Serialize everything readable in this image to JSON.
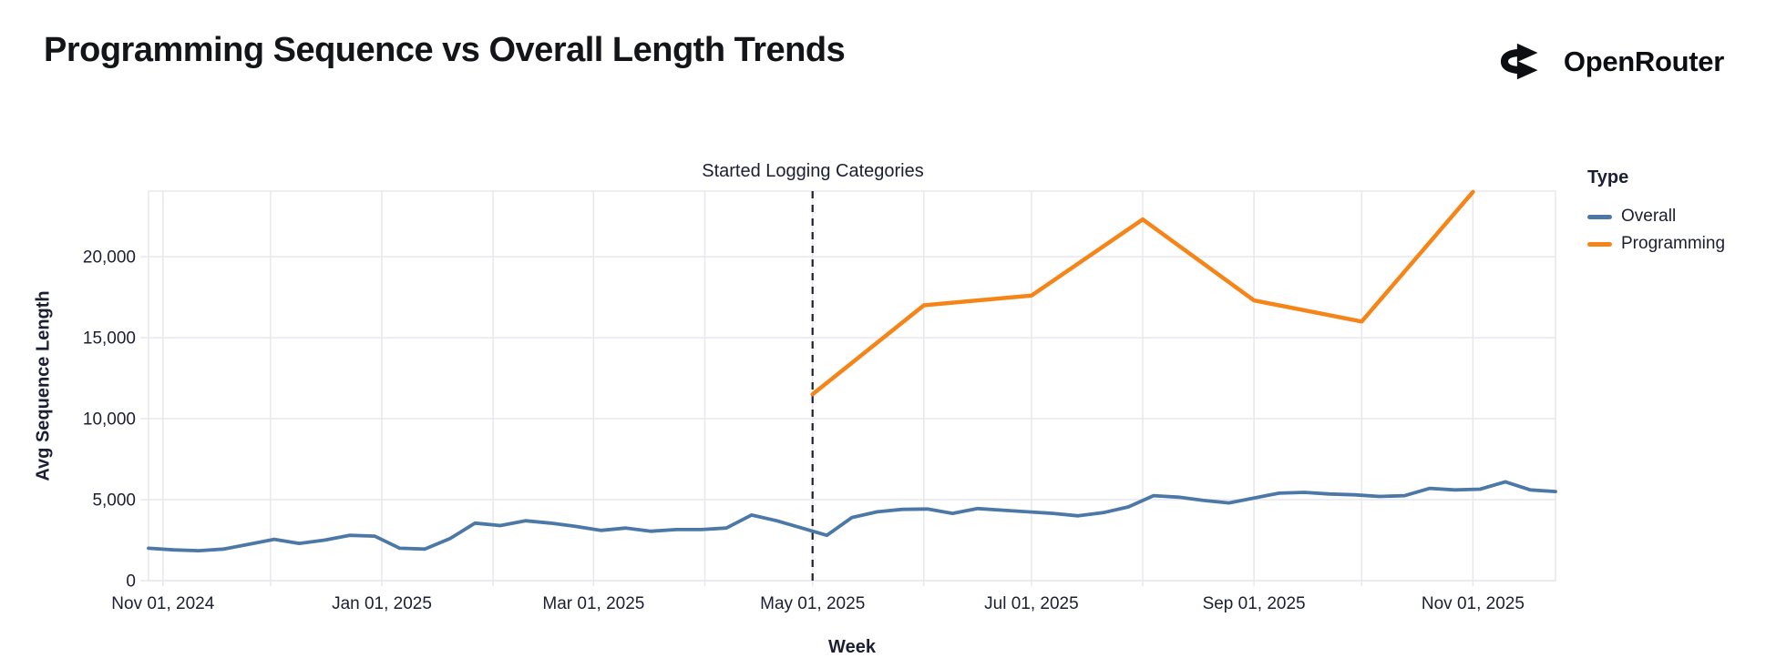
{
  "header": {
    "title": "Programming Sequence vs Overall Length Trends",
    "brand": "OpenRouter"
  },
  "legend": {
    "title": "Type",
    "items": [
      {
        "label": "Overall",
        "color": "#4c78a8"
      },
      {
        "label": "Programming",
        "color": "#f58518"
      }
    ]
  },
  "chart_data": {
    "type": "line",
    "title": "Programming Sequence vs Overall Length Trends",
    "xlabel": "Week",
    "ylabel": "Avg Sequence Length",
    "x_domain": [
      "2024-10-28",
      "2025-11-24"
    ],
    "ylim": [
      0,
      24050
    ],
    "y_ticks": [
      0,
      5000,
      10000,
      15000,
      20000
    ],
    "x_ticks": [
      {
        "date": "2024-11-01",
        "label": "Nov 01, 2024"
      },
      {
        "date": "2025-01-01",
        "label": "Jan 01, 2025"
      },
      {
        "date": "2025-03-01",
        "label": "Mar 01, 2025"
      },
      {
        "date": "2025-05-01",
        "label": "May 01, 2025"
      },
      {
        "date": "2025-07-01",
        "label": "Jul 01, 2025"
      },
      {
        "date": "2025-09-01",
        "label": "Sep 01, 2025"
      },
      {
        "date": "2025-11-01",
        "label": "Nov 01, 2025"
      }
    ],
    "month_gridlines": [
      "2024-11-01",
      "2024-12-01",
      "2025-01-01",
      "2025-02-01",
      "2025-03-01",
      "2025-04-01",
      "2025-05-01",
      "2025-06-01",
      "2025-07-01",
      "2025-08-01",
      "2025-09-01",
      "2025-10-01",
      "2025-11-01"
    ],
    "grid": true,
    "legend_position": "right",
    "annotation": {
      "label": "Started Logging Categories",
      "date": "2025-05-01"
    },
    "colors": {
      "grid": "#e7e7ee",
      "text": "#1c1e33",
      "background": "#ffffff"
    },
    "series": [
      {
        "name": "Overall",
        "color": "#4c78a8",
        "points": [
          [
            "2024-10-28",
            2000
          ],
          [
            "2024-11-04",
            1900
          ],
          [
            "2024-11-11",
            1850
          ],
          [
            "2024-11-18",
            1950
          ],
          [
            "2024-11-25",
            2250
          ],
          [
            "2024-12-02",
            2550
          ],
          [
            "2024-12-09",
            2300
          ],
          [
            "2024-12-16",
            2500
          ],
          [
            "2024-12-23",
            2800
          ],
          [
            "2024-12-30",
            2750
          ],
          [
            "2025-01-06",
            2000
          ],
          [
            "2025-01-13",
            1950
          ],
          [
            "2025-01-20",
            2600
          ],
          [
            "2025-01-27",
            3550
          ],
          [
            "2025-02-03",
            3400
          ],
          [
            "2025-02-10",
            3700
          ],
          [
            "2025-02-17",
            3550
          ],
          [
            "2025-02-24",
            3350
          ],
          [
            "2025-03-03",
            3100
          ],
          [
            "2025-03-10",
            3250
          ],
          [
            "2025-03-17",
            3050
          ],
          [
            "2025-03-24",
            3150
          ],
          [
            "2025-03-31",
            3150
          ],
          [
            "2025-04-07",
            3250
          ],
          [
            "2025-04-14",
            4050
          ],
          [
            "2025-04-21",
            3700
          ],
          [
            "2025-04-28",
            3250
          ],
          [
            "2025-05-05",
            2800
          ],
          [
            "2025-05-12",
            3900
          ],
          [
            "2025-05-19",
            4250
          ],
          [
            "2025-05-26",
            4400
          ],
          [
            "2025-06-02",
            4425
          ],
          [
            "2025-06-09",
            4150
          ],
          [
            "2025-06-16",
            4450
          ],
          [
            "2025-06-23",
            4350
          ],
          [
            "2025-06-30",
            4250
          ],
          [
            "2025-07-07",
            4150
          ],
          [
            "2025-07-14",
            4000
          ],
          [
            "2025-07-21",
            4200
          ],
          [
            "2025-07-28",
            4550
          ],
          [
            "2025-08-04",
            5250
          ],
          [
            "2025-08-11",
            5150
          ],
          [
            "2025-08-18",
            4950
          ],
          [
            "2025-08-25",
            4800
          ],
          [
            "2025-09-01",
            5100
          ],
          [
            "2025-09-08",
            5400
          ],
          [
            "2025-09-15",
            5450
          ],
          [
            "2025-09-22",
            5350
          ],
          [
            "2025-09-29",
            5300
          ],
          [
            "2025-10-06",
            5200
          ],
          [
            "2025-10-13",
            5250
          ],
          [
            "2025-10-20",
            5700
          ],
          [
            "2025-10-27",
            5600
          ],
          [
            "2025-11-03",
            5650
          ],
          [
            "2025-11-10",
            6100
          ],
          [
            "2025-11-17",
            5600
          ],
          [
            "2025-11-24",
            5500
          ]
        ]
      },
      {
        "name": "Programming",
        "color": "#f58518",
        "points": [
          [
            "2025-05-01",
            11500
          ],
          [
            "2025-06-01",
            17000
          ],
          [
            "2025-07-01",
            17600
          ],
          [
            "2025-08-01",
            22300
          ],
          [
            "2025-09-01",
            17300
          ],
          [
            "2025-10-01",
            16000
          ],
          [
            "2025-11-01",
            24000
          ]
        ]
      }
    ]
  }
}
